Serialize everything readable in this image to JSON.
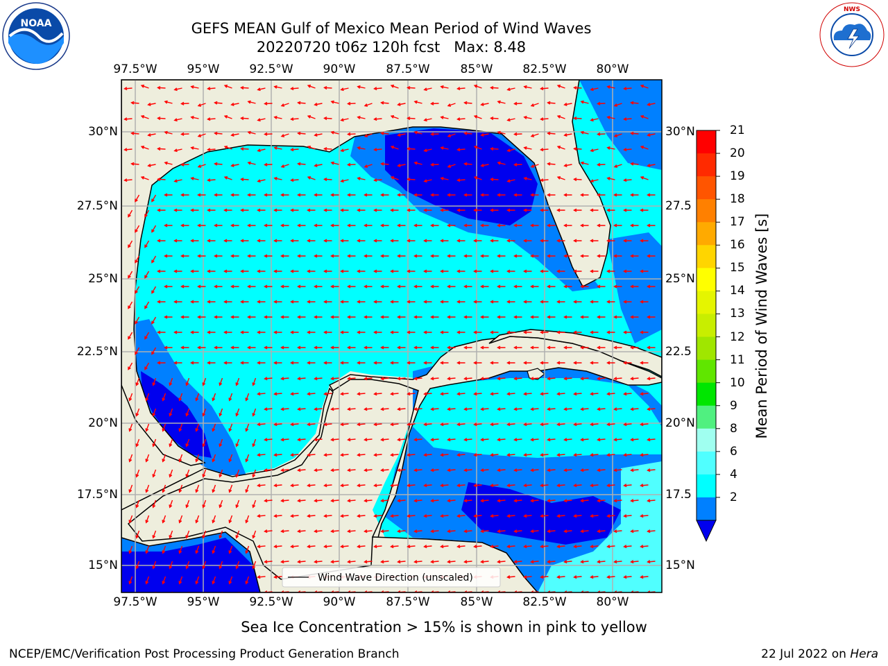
{
  "title": {
    "line1": "GEFS MEAN Gulf of Mexico Mean Period of Wind Waves",
    "line2": "20220720 t06z 120h fcst   Max: 8.48"
  },
  "logos": {
    "left": "NOAA",
    "right": "NATIONAL WEATHER SERVICE"
  },
  "map": {
    "lon_ticks": [
      "97.5°W",
      "95°W",
      "92.5°W",
      "90°W",
      "87.5°W",
      "85°W",
      "82.5°W",
      "80°W"
    ],
    "lat_ticks_left": [
      "30°N",
      "27.5°N",
      "25°N",
      "22.5°N",
      "20°N",
      "17.5°N",
      "15°N"
    ],
    "lat_ticks_right": [
      "30°N",
      "27.5",
      "25°N",
      "22.5",
      "20°N",
      "17.5",
      "15°N"
    ],
    "legend_label": "Wind Wave Direction (unscaled)",
    "colors": {
      "land": "#eeeedd",
      "ocean": "#00ffff",
      "arrow": "#ff0000",
      "grid": "#b0b0b0"
    }
  },
  "colorbar": {
    "label": "Mean Period of Wind Waves [s]",
    "ticks": [
      "21",
      "20",
      "19",
      "18",
      "17",
      "16",
      "15",
      "14",
      "13",
      "12",
      "11",
      "10",
      "9",
      "8",
      "6",
      "4",
      "2"
    ],
    "colors": [
      "#ff0000",
      "#ff2a00",
      "#ff5500",
      "#ff8000",
      "#ffaa00",
      "#ffd500",
      "#ffff00",
      "#e5f500",
      "#c8ee00",
      "#a0e600",
      "#60e600",
      "#00e600",
      "#50f080",
      "#a0fff0",
      "#50ffff",
      "#00ffff",
      "#0080ff",
      "#0000ee"
    ]
  },
  "notes": {
    "ice": "Sea Ice Concentration > 15% is shown in pink to yellow",
    "footer_left": "NCEP/EMC/Verification Post Processing Product Generation Branch",
    "footer_right_prefix": "22 Jul 2022 on ",
    "footer_right_host": "Hera"
  }
}
